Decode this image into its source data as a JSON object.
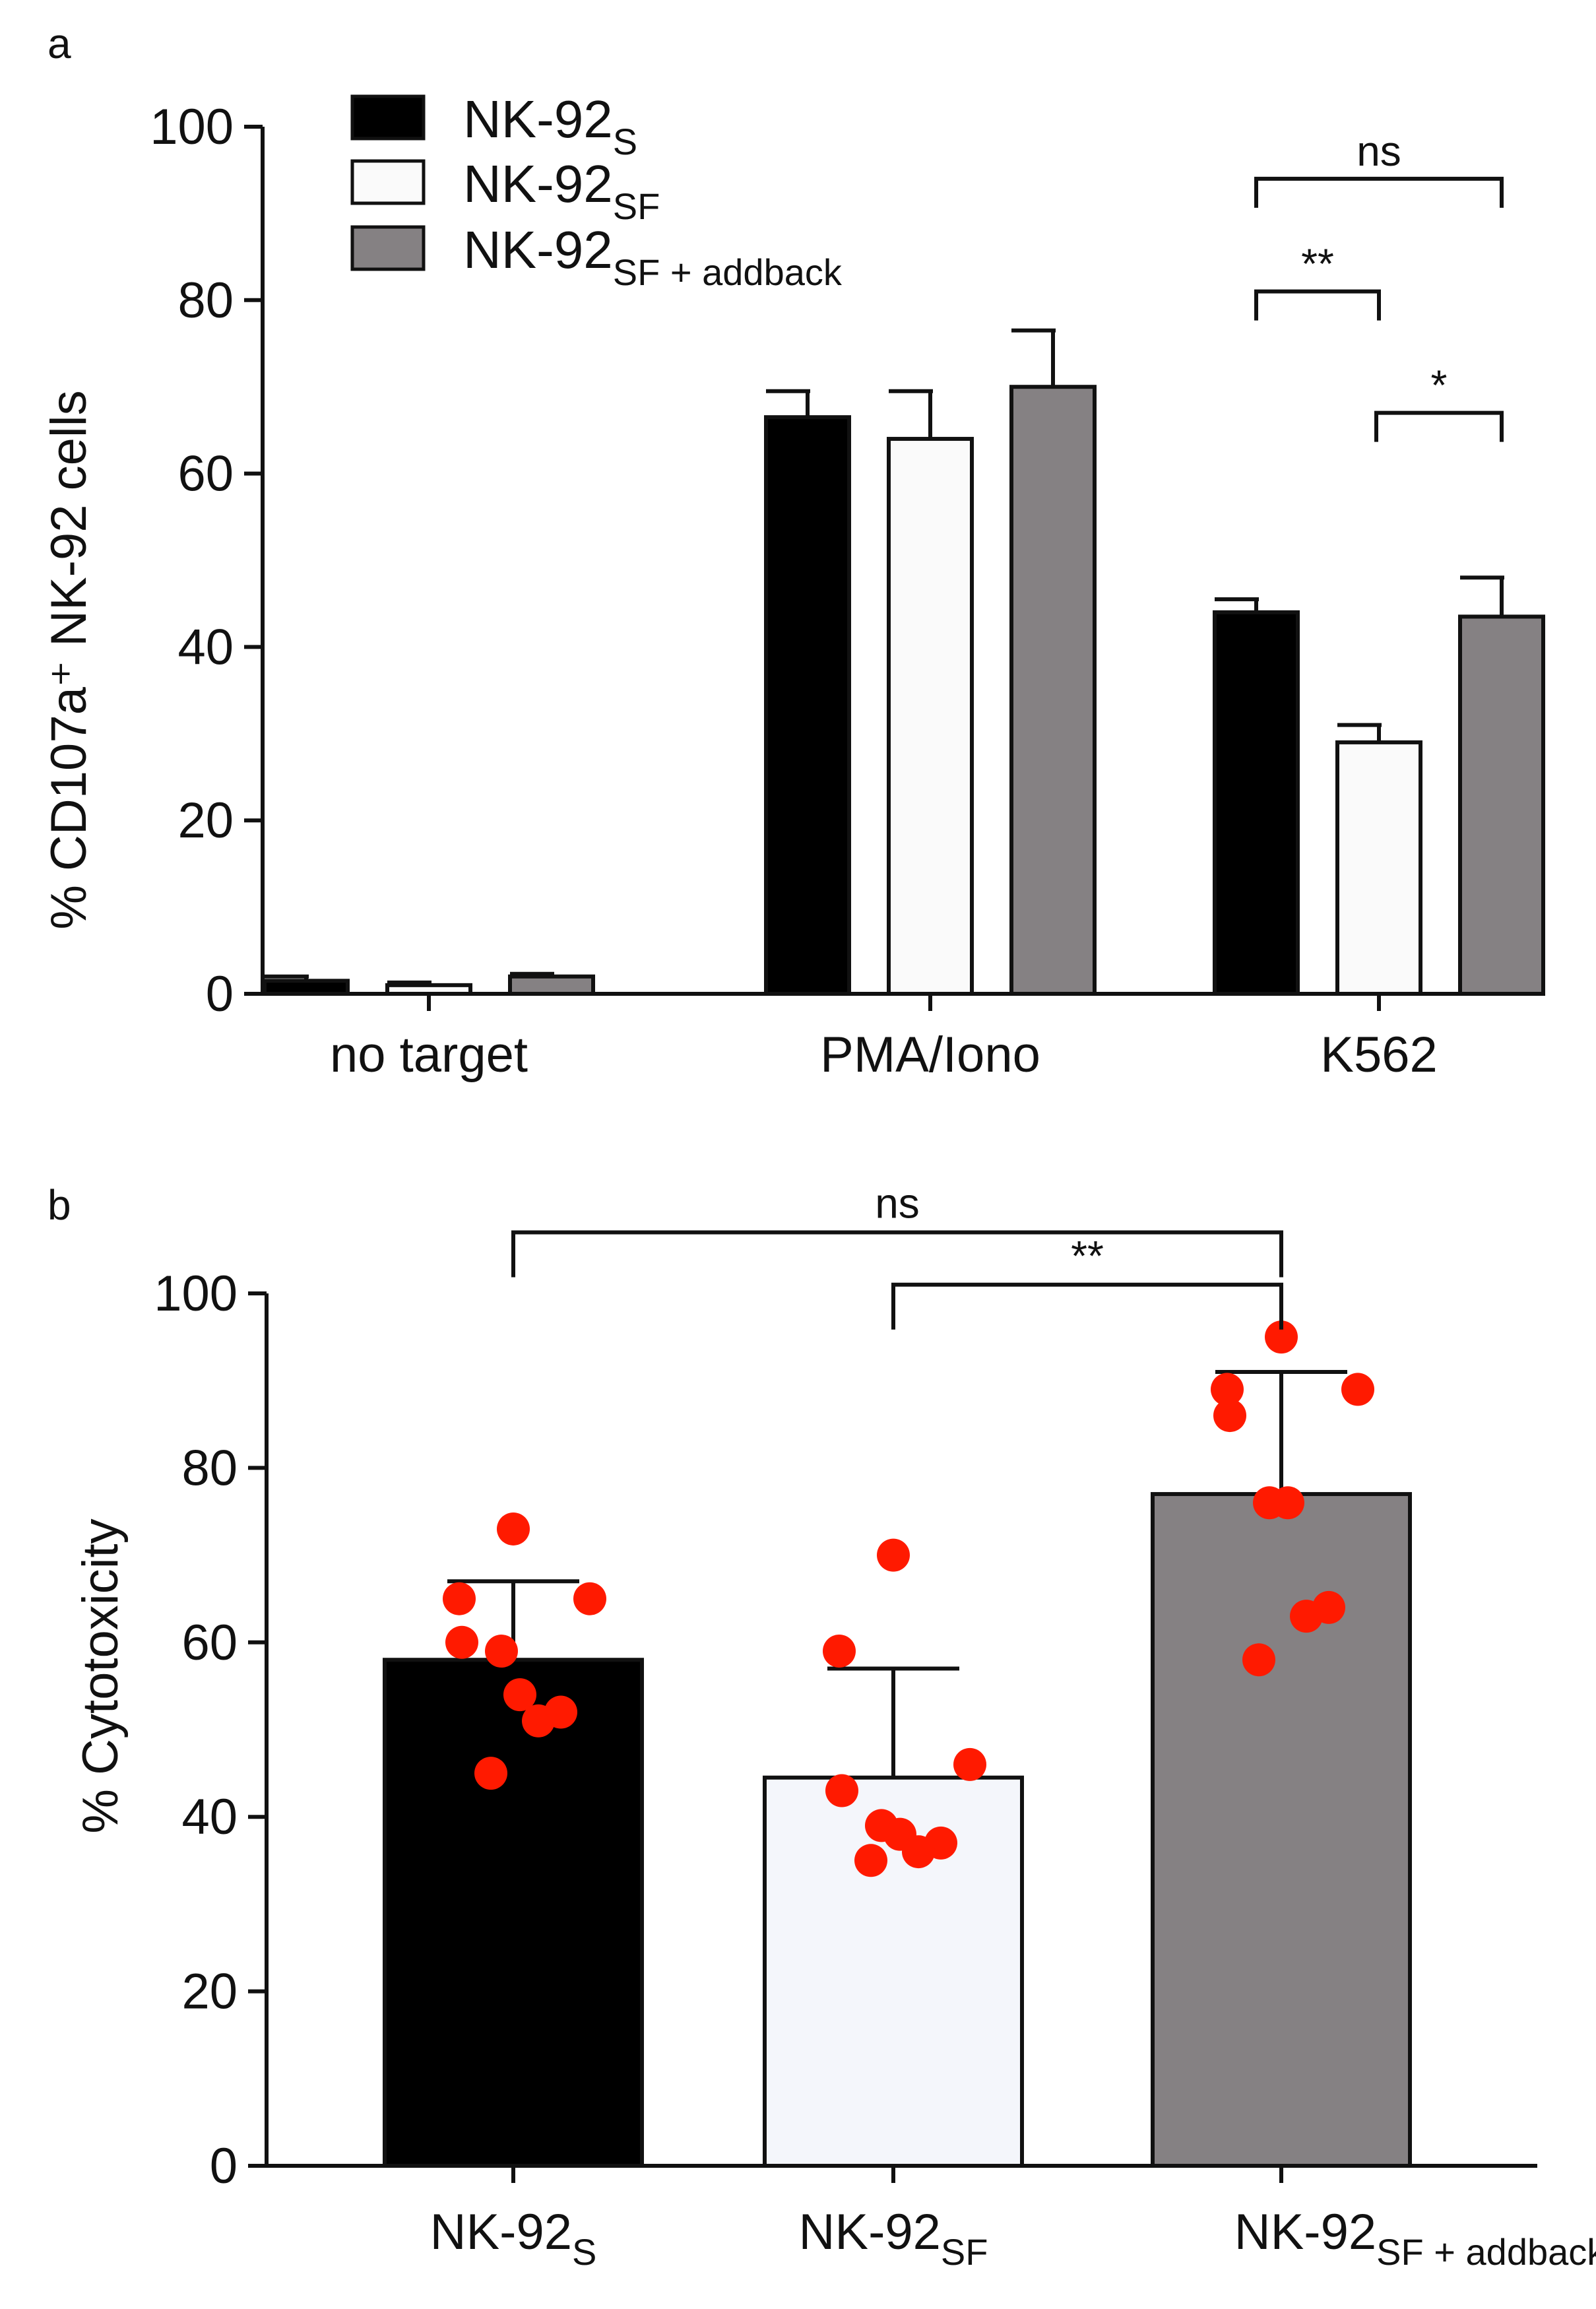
{
  "chart_data": [
    {
      "type": "bar",
      "panel_label": "a",
      "ylabel": "% CD107a⁺ NK-92 cells",
      "ylim": [
        0,
        100
      ],
      "yticks": [
        0,
        20,
        40,
        60,
        80,
        100
      ],
      "categories": [
        "no target",
        "PMA/Iono",
        "K562"
      ],
      "series": [
        {
          "name": "NK-92",
          "sub": "S",
          "color": "#000000",
          "values": [
            1.5,
            66.5,
            44.0
          ],
          "errors": [
            0.5,
            3.0,
            1.5
          ]
        },
        {
          "name": "NK-92",
          "sub": "SF",
          "color": "#fafafa",
          "values": [
            1.0,
            64.0,
            29.0
          ],
          "errors": [
            0.3,
            5.5,
            2.0
          ]
        },
        {
          "name": "NK-92",
          "sub": "SF + addback",
          "color": "#858183",
          "values": [
            2.0,
            70.0,
            43.5
          ],
          "errors": [
            0.3,
            6.5,
            4.5
          ]
        }
      ],
      "significance": [
        {
          "category": "K562",
          "from": 0,
          "to": 2,
          "label": "ns",
          "y": 94
        },
        {
          "category": "K562",
          "from": 0,
          "to": 1,
          "label": "**",
          "y": 81
        },
        {
          "category": "K562",
          "from": 1,
          "to": 2,
          "label": "*",
          "y": 67
        }
      ],
      "legend": "top-left"
    },
    {
      "type": "bar",
      "panel_label": "b",
      "ylabel": "% Cytotoxicity",
      "ylim": [
        0,
        100
      ],
      "yticks": [
        0,
        20,
        40,
        60,
        80,
        100
      ],
      "bars": [
        {
          "name": "NK-92",
          "sub": "S",
          "color": "#000000",
          "value": 58,
          "error": 9,
          "points": [
            73,
            65,
            65,
            60,
            59,
            54,
            52,
            51,
            45
          ]
        },
        {
          "name": "NK-92",
          "sub": "SF",
          "color": "#f4f6fb",
          "value": 44.5,
          "error": 12.5,
          "points": [
            70,
            59,
            46,
            43,
            39,
            38,
            37,
            36,
            35
          ]
        },
        {
          "name": "NK-92",
          "sub": "SF + addback",
          "color": "#858183",
          "value": 77,
          "error": 14,
          "points": [
            95,
            89,
            89,
            86,
            76,
            76,
            64,
            63,
            58
          ]
        }
      ],
      "point_color": "#ff1a00",
      "significance": [
        {
          "from": 0,
          "to": 2,
          "label": "ns",
          "y": 107
        },
        {
          "from": 1,
          "to": 2,
          "label": "**",
          "y": 101
        }
      ]
    }
  ]
}
